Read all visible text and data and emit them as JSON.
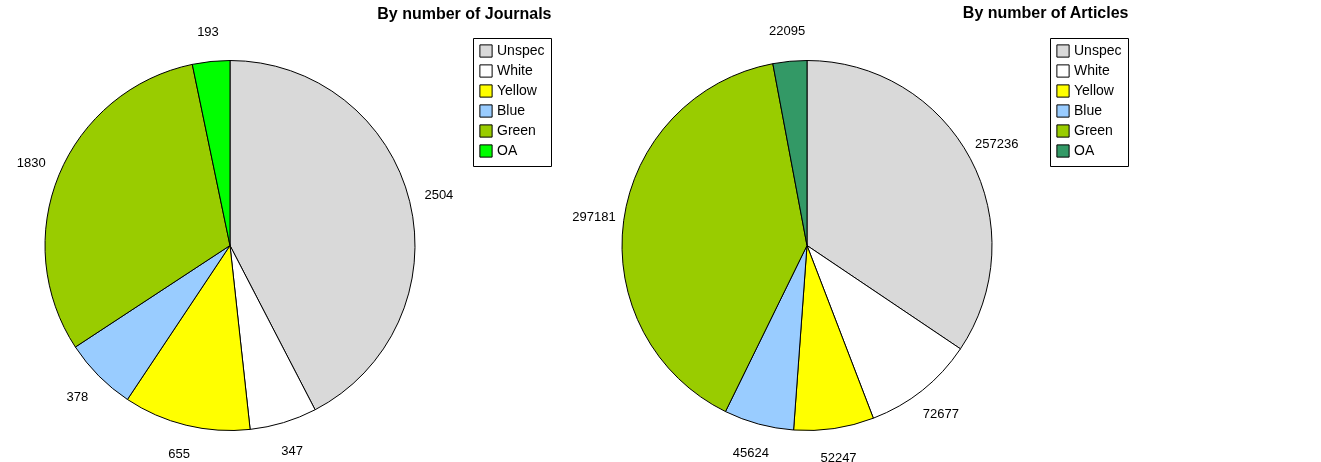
{
  "chart_data": [
    {
      "type": "pie",
      "title": "By number of Journals",
      "categories": [
        "Unspec",
        "White",
        "Yellow",
        "Blue",
        "Green",
        "OA"
      ],
      "values": [
        2504,
        347,
        655,
        378,
        1830,
        193
      ],
      "colors": [
        "#d9d9d9",
        "#ffffff",
        "#ffff00",
        "#99ccff",
        "#99cc00",
        "#00ff00"
      ],
      "data_labels": true,
      "legend": "right"
    },
    {
      "type": "pie",
      "title": "By number of Articles",
      "categories": [
        "Unspec",
        "White",
        "Yellow",
        "Blue",
        "Green",
        "OA"
      ],
      "values": [
        257236,
        72677,
        52247,
        45624,
        297181,
        22095
      ],
      "colors": [
        "#d9d9d9",
        "#ffffff",
        "#ffff00",
        "#99ccff",
        "#99cc00",
        "#339966"
      ],
      "data_labels": true,
      "legend": "right"
    }
  ]
}
